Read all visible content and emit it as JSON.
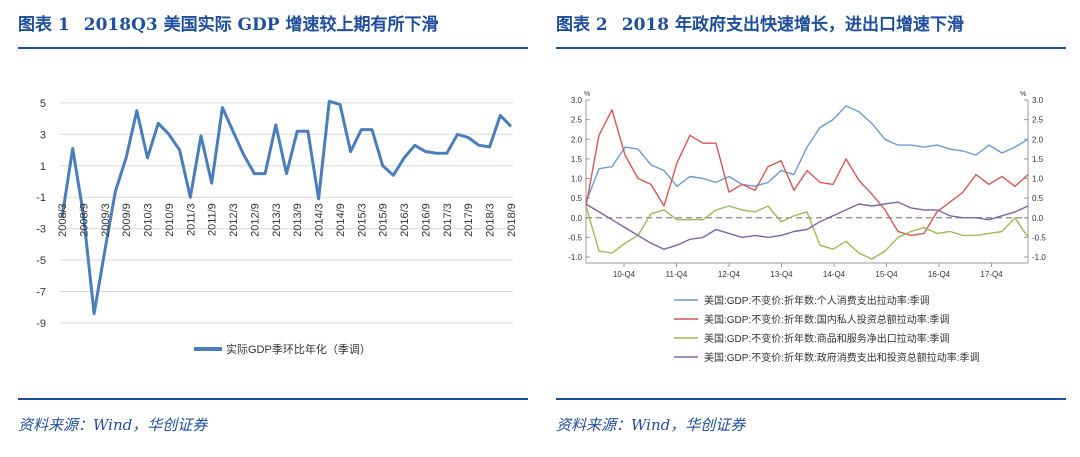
{
  "figure1": {
    "number": "图表 1",
    "title": "2018Q3 美国实际 GDP 增速较上期有所下滑",
    "source": "资料来源：Wind，华创证券",
    "chart_data": {
      "type": "line",
      "yticks": [
        5,
        3,
        1,
        -1,
        -3,
        -5,
        -7,
        -9
      ],
      "ylim": [
        -9,
        5.5
      ],
      "x_tick_labels": [
        "2008/3",
        "2008/9",
        "2009/3",
        "2009/9",
        "2010/3",
        "2010/9",
        "2011/3",
        "2011/9",
        "2012/3",
        "2012/9",
        "2013/3",
        "2013/9",
        "2014/3",
        "2014/9",
        "2015/3",
        "2015/9",
        "2016/3",
        "2016/9",
        "2017/3",
        "2017/9",
        "2018/3",
        "2018/9"
      ],
      "series": [
        {
          "name": "实际GDP季环比年化（季调）",
          "color": "#4a7ebb",
          "values": [
            -2.3,
            2.1,
            -2.1,
            -8.4,
            -4.4,
            -0.6,
            1.5,
            4.5,
            1.5,
            3.7,
            3.0,
            2.0,
            -1.0,
            2.9,
            -0.1,
            4.7,
            3.2,
            1.7,
            0.5,
            0.5,
            3.6,
            0.5,
            3.2,
            3.2,
            -1.1,
            5.1,
            4.9,
            1.9,
            3.3,
            3.3,
            1.0,
            0.4,
            1.5,
            2.3,
            1.9,
            1.8,
            1.8,
            3.0,
            2.8,
            2.3,
            2.2,
            4.2,
            3.5
          ]
        }
      ]
    }
  },
  "figure2": {
    "number": "图表 2",
    "title": "2018 年政府支出快速增长，进出口增速下滑",
    "source": "资料来源：Wind，华创证券",
    "chart_data": {
      "type": "line",
      "unit_left": "%",
      "unit_right": "%",
      "yticks": [
        "3.0",
        "2.5",
        "2.0",
        "1.5",
        "1.0",
        "0.5",
        "0.0",
        "-0.5",
        "-1.0"
      ],
      "ylim": [
        -1.0,
        3.0
      ],
      "x_tick_labels": [
        "10-Q4",
        "11-Q4",
        "12-Q4",
        "13-Q4",
        "14-Q4",
        "15-Q4",
        "16-Q4",
        "17-Q4"
      ],
      "series": [
        {
          "name": "美国:GDP:不变价:折年数:个人消费支出拉动率:季调",
          "color": "#6a9bd1",
          "values": [
            0.4,
            1.25,
            1.3,
            1.8,
            1.75,
            1.35,
            1.2,
            0.8,
            1.05,
            1.0,
            0.9,
            1.05,
            0.85,
            0.8,
            0.9,
            1.2,
            1.1,
            1.8,
            2.3,
            2.5,
            2.85,
            2.7,
            2.4,
            2.0,
            1.85,
            1.85,
            1.8,
            1.85,
            1.75,
            1.7,
            1.6,
            1.85,
            1.65,
            1.8,
            2.0
          ]
        },
        {
          "name": "美国:GDP:不变价:折年数:国内私人投资总额拉动率:季调",
          "color": "#d05a57",
          "values": [
            0.3,
            2.1,
            2.75,
            1.6,
            1.0,
            0.85,
            0.3,
            1.4,
            2.1,
            1.9,
            1.9,
            0.65,
            0.85,
            0.7,
            1.3,
            1.45,
            0.7,
            1.2,
            0.9,
            0.85,
            1.5,
            0.95,
            0.6,
            0.2,
            -0.35,
            -0.45,
            -0.4,
            0.15,
            0.4,
            0.65,
            1.1,
            0.85,
            1.05,
            0.8,
            1.1
          ]
        },
        {
          "name": "美国:GDP:不变价:折年数:商品和服务净出口拉动率:季调",
          "color": "#9bbb59",
          "values": [
            0.3,
            -0.85,
            -0.9,
            -0.65,
            -0.45,
            0.1,
            0.2,
            -0.05,
            -0.05,
            -0.05,
            0.2,
            0.3,
            0.2,
            0.15,
            0.3,
            -0.1,
            0.05,
            0.15,
            -0.7,
            -0.8,
            -0.6,
            -0.9,
            -1.05,
            -0.85,
            -0.5,
            -0.35,
            -0.25,
            -0.4,
            -0.35,
            -0.45,
            -0.45,
            -0.4,
            -0.35,
            0.0,
            -0.5
          ]
        },
        {
          "name": "美国:GDP:不变价:折年数:政府消费支出和投资总额拉动率:季调",
          "color": "#8064a2",
          "values": [
            0.35,
            0.15,
            -0.05,
            -0.25,
            -0.45,
            -0.65,
            -0.8,
            -0.7,
            -0.55,
            -0.5,
            -0.3,
            -0.4,
            -0.5,
            -0.45,
            -0.5,
            -0.45,
            -0.35,
            -0.3,
            -0.1,
            0.05,
            0.2,
            0.35,
            0.3,
            0.35,
            0.4,
            0.25,
            0.2,
            0.2,
            0.05,
            0.0,
            0.0,
            -0.05,
            0.05,
            0.15,
            0.3
          ]
        }
      ]
    }
  }
}
